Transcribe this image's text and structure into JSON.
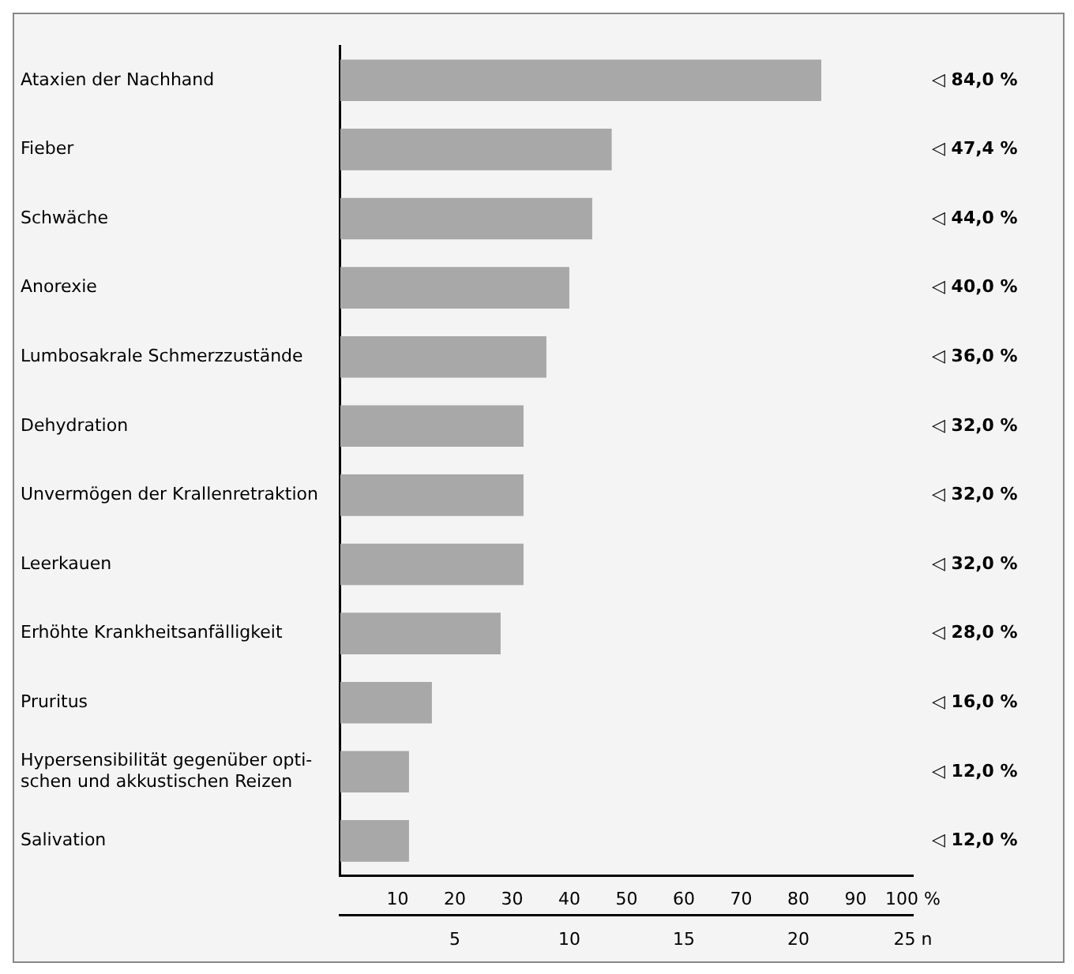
{
  "chart_data": {
    "type": "bar",
    "orientation": "horizontal",
    "categories": [
      "Ataxien der Nachhand",
      "Fieber",
      "Schwäche",
      "Anorexie",
      "Lumbosakrale Schmerzzustände",
      "Dehydration",
      "Unvermögen der Krallenretraktion",
      "Leerkauen",
      "Erhöhte Krankheitsanfälligkeit",
      "Pruritus",
      "Hypersensibilität gegenüber opti-\nschen und akkustischen Reizen",
      "Salivation"
    ],
    "values": [
      84,
      47.4,
      44,
      40,
      36,
      32,
      32,
      32,
      28,
      16,
      12,
      12
    ],
    "value_labels": [
      "◁ 84,0 %",
      "◁ 47,4 %",
      "◁ 44,0 %",
      "◁ 40,0 %",
      "◁ 36,0 %",
      "◁ 32,0 %",
      "◁ 32,0 %",
      "◁ 32,0 %",
      "◁ 28,0 %",
      "◁ 16,0 %",
      "◁ 12,0 %",
      "◁ 12,0 %"
    ],
    "color": "#a8a8a8",
    "xlim": [
      0,
      100
    ],
    "xticks": [
      10,
      20,
      30,
      40,
      50,
      60,
      70,
      80,
      90,
      {
        "value": 100,
        "label": "100 %"
      }
    ],
    "x2lim": [
      0,
      25
    ],
    "x2ticks": [
      5,
      10,
      15,
      20,
      {
        "value": 25,
        "label": "25 n"
      }
    ],
    "grid": false,
    "legend": false
  }
}
